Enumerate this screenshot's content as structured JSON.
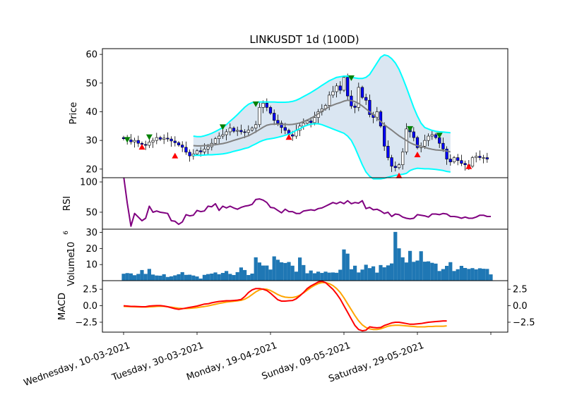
{
  "chart_data": {
    "title": "LINKUSDT 1d (100D)",
    "type": "candlestick",
    "x_ticks": [
      {
        "label": "Wednesday, 10-03-2021",
        "day": 0
      },
      {
        "label": "Tuesday, 30-03-2021",
        "day": 20
      },
      {
        "label": "Monday, 19-04-2021",
        "day": 40
      },
      {
        "label": "Sunday, 09-05-2021",
        "day": 60
      },
      {
        "label": "Saturday, 29-05-2021",
        "day": 80
      },
      {
        "label": "",
        "day": 100
      }
    ],
    "panels": {
      "price": {
        "ylabel": "Price",
        "ylim": [
          17,
          62
        ],
        "yticks": [
          20,
          30,
          40,
          50,
          60
        ],
        "up_color": "#ffffff",
        "down_color": "#0000ff",
        "ma_color": "#808080",
        "band_color": "#00ffff",
        "fill_color": "#dae6f2",
        "buy_marker_color": "#008000",
        "sell_marker_color": "#ff0000",
        "close": [
          30.6,
          30.2,
          29.5,
          30.0,
          29.0,
          28.6,
          28.3,
          29.4,
          30.0,
          31.0,
          30.4,
          30.8,
          30.5,
          29.8,
          29.2,
          28.4,
          27.6,
          25.9,
          24.6,
          25.3,
          26.4,
          26.0,
          27.0,
          27.8,
          29.0,
          30.6,
          31.5,
          32.0,
          33.0,
          34.3,
          33.2,
          33.5,
          33.0,
          32.8,
          33.6,
          34.3,
          35.5,
          41.5,
          43.0,
          41.5,
          39.5,
          37.0,
          36.0,
          34.5,
          33.5,
          32.0,
          31.5,
          33.5,
          35.0,
          36.0,
          36.8,
          36.2,
          38.0,
          40.0,
          41.0,
          42.2,
          45.8,
          47.0,
          49.0,
          47.5,
          52.0,
          45.5,
          42.0,
          41.5,
          48.5,
          45.0,
          44.0,
          39.0,
          38.0,
          40.0,
          35.0,
          28.0,
          24.0,
          21.0,
          20.5,
          21.5,
          26.0,
          34.0,
          33.0,
          31.0,
          27.5,
          28.0,
          30.0,
          31.5,
          32.0,
          31.0,
          29.0,
          27.0,
          23.5,
          22.5,
          24.0,
          23.0,
          22.0,
          21.5,
          21.0,
          24.0,
          24.5,
          24.0,
          24.0,
          23.5
        ],
        "bands": {
          "start_day": 19,
          "mid": [
            28.2,
            28.1,
            28.1,
            28.2,
            28.3,
            28.4,
            28.5,
            28.7,
            28.9,
            29.2,
            29.6,
            30.0,
            30.4,
            30.8,
            31.2,
            31.6,
            32.3,
            33.0,
            33.8,
            34.6,
            35.3,
            35.6,
            35.7,
            35.7,
            35.6,
            35.6,
            35.5,
            35.6,
            35.8,
            36.1,
            36.6,
            37.1,
            37.7,
            38.5,
            39.3,
            40.2,
            41.0,
            41.8,
            42.3,
            42.8,
            43.2,
            43.7,
            44.0,
            43.9,
            43.5,
            42.9,
            42.0,
            41.0,
            40.0,
            39.0,
            37.8,
            36.6,
            35.5,
            34.5,
            33.6,
            32.6,
            31.6,
            30.8,
            30.0,
            29.2,
            28.6,
            28.2,
            28.0,
            27.6,
            27.2,
            26.9,
            26.7,
            26.6,
            26.5,
            26.3,
            26.0
          ],
          "upper": [
            31.5,
            31.3,
            31.3,
            31.6,
            32.0,
            32.5,
            33.1,
            33.8,
            34.5,
            35.5,
            36.7,
            37.8,
            39.0,
            40.3,
            41.6,
            42.6,
            43.2,
            43.3,
            43.4,
            43.4,
            43.4,
            43.4,
            43.4,
            43.3,
            43.3,
            43.3,
            43.4,
            43.6,
            44.0,
            44.6,
            45.3,
            46.0,
            46.7,
            47.5,
            48.3,
            49.2,
            50.0,
            50.8,
            51.4,
            52.0,
            52.2,
            52.4,
            52.4,
            52.0,
            51.8,
            51.6,
            51.6,
            52.0,
            53.0,
            55.0,
            57.0,
            59.0,
            59.8,
            59.5,
            58.5,
            57.0,
            54.8,
            51.8,
            48.5,
            45.0,
            41.5,
            38.5,
            36.0,
            34.5,
            34.0,
            33.5,
            33.2,
            33.0,
            32.9,
            32.8,
            32.7
          ],
          "lower": [
            24.8,
            24.8,
            24.8,
            24.9,
            25.0,
            25.0,
            25.1,
            25.2,
            25.3,
            25.5,
            25.8,
            26.2,
            26.5,
            26.8,
            27.2,
            27.5,
            28.2,
            28.8,
            29.5,
            30.0,
            30.4,
            30.6,
            30.8,
            31.1,
            31.4,
            31.8,
            32.2,
            32.8,
            33.5,
            34.1,
            34.8,
            35.3,
            35.7,
            35.8,
            35.8,
            35.5,
            35.0,
            34.5,
            34.0,
            33.5,
            33.0,
            32.5,
            31.5,
            30.0,
            27.5,
            24.5,
            21.5,
            19.0,
            17.5,
            16.6,
            16.6,
            16.6,
            16.8,
            17.2,
            17.5,
            17.8,
            18.0,
            18.2,
            18.5,
            19.5,
            20.0,
            20.3,
            20.2,
            20.1,
            20.1,
            20.0,
            19.9,
            19.7,
            19.5,
            19.2,
            19.0
          ]
        },
        "buy_markers": [
          [
            1,
            30.2
          ],
          [
            7,
            31.1
          ],
          [
            27,
            34.6
          ],
          [
            36,
            42.6
          ],
          [
            62,
            51.7
          ],
          [
            78,
            34.0
          ],
          [
            86,
            31.7
          ]
        ],
        "sell_markers": [
          [
            5,
            27.8
          ],
          [
            14,
            24.7
          ],
          [
            45,
            31.2
          ],
          [
            75,
            17.8
          ],
          [
            80,
            25.1
          ],
          [
            94,
            21.0
          ]
        ]
      },
      "rsi": {
        "ylabel": "RSI",
        "color": "#800080",
        "ylim": [
          22,
          107
        ],
        "yticks": [
          50,
          100
        ],
        "values": [
          110,
          65,
          27,
          48,
          42,
          36,
          40,
          60,
          50,
          52,
          50,
          49,
          48,
          36,
          35,
          30,
          34,
          46,
          44,
          45,
          53,
          51,
          52,
          60,
          59,
          64,
          53,
          60,
          57,
          60,
          57,
          55,
          58,
          60,
          61,
          63,
          71,
          72,
          70,
          66,
          58,
          57,
          53,
          49,
          55,
          51,
          51,
          48,
          48,
          52,
          53,
          54,
          53,
          56,
          57,
          60,
          63,
          66,
          64,
          67,
          64,
          69,
          64,
          66,
          65,
          69,
          56,
          58,
          54,
          55,
          52,
          48,
          50,
          43,
          47,
          46,
          42,
          40,
          39,
          40,
          46,
          45,
          44,
          42,
          47,
          47,
          46,
          48,
          47,
          43,
          43,
          42,
          40,
          42,
          40,
          40,
          42,
          45,
          45,
          43,
          43
        ]
      },
      "volume": {
        "ylabel": "Volume",
        "exponent_label": "10",
        "exponent_power": "6",
        "color": "#1f77b4",
        "ylim": [
          0,
          32
        ],
        "yticks": [
          10,
          20,
          30
        ],
        "values": [
          4.3,
          4.7,
          4.5,
          3.4,
          4.2,
          6.6,
          4.2,
          7.3,
          3.8,
          3.2,
          3.1,
          4.0,
          2.3,
          2.7,
          3.3,
          4.0,
          5.3,
          3.6,
          3.7,
          3.2,
          2.6,
          1.3,
          3.6,
          4.1,
          4.4,
          5.1,
          4.0,
          4.8,
          6.0,
          4.2,
          3.5,
          5.3,
          8.2,
          6.6,
          3.5,
          4.4,
          14.5,
          11.3,
          9.4,
          9.4,
          6.9,
          15.1,
          13.0,
          11.4,
          11.0,
          11.6,
          9.3,
          5.6,
          14.4,
          9.7,
          4.6,
          6.3,
          4.6,
          5.6,
          4.8,
          5.6,
          5.0,
          5.1,
          4.9,
          6.8,
          19.4,
          16.8,
          7.1,
          9.3,
          5.1,
          6.9,
          9.9,
          7.8,
          8.9,
          5.0,
          9.7,
          8.3,
          9.5,
          10.7,
          30.3,
          20.1,
          14.5,
          11.3,
          18.5,
          11.7,
          12.5,
          18.3,
          11.8,
          12.0,
          11.1,
          10.6,
          6.0,
          7.2,
          9.2,
          11.5,
          6.0,
          7.1,
          9.2,
          7.9,
          7.3,
          7.8,
          7.0,
          7.7,
          7.4,
          7.3,
          3.9
        ]
      },
      "macd": {
        "ylabel": "MACD",
        "macd_color": "#ff0000",
        "signal_color": "#ffa500",
        "ylim": [
          -4.0,
          3.8
        ],
        "yticks": [
          -2.5,
          0.0,
          2.5
        ],
        "macd": [
          0.0,
          -0.05,
          -0.1,
          -0.1,
          -0.12,
          -0.15,
          -0.15,
          -0.05,
          0.0,
          0.02,
          0.02,
          -0.05,
          -0.15,
          -0.3,
          -0.45,
          -0.55,
          -0.45,
          -0.35,
          -0.25,
          -0.15,
          -0.05,
          0.1,
          0.25,
          0.3,
          0.45,
          0.55,
          0.65,
          0.7,
          0.75,
          0.75,
          0.8,
          0.85,
          0.95,
          1.4,
          2.0,
          2.4,
          2.6,
          2.6,
          2.5,
          2.3,
          1.9,
          1.4,
          0.9,
          0.7,
          0.7,
          0.75,
          0.8,
          1.05,
          1.5,
          2.0,
          2.6,
          3.0,
          3.3,
          3.6,
          3.7,
          3.5,
          3.0,
          2.5,
          1.8,
          1.0,
          0.0,
          -1.0,
          -2.0,
          -3.0,
          -3.6,
          -3.8,
          -3.7,
          -3.2,
          -3.3,
          -3.35,
          -3.3,
          -3.0,
          -2.8,
          -2.6,
          -2.5,
          -2.5,
          -2.6,
          -2.7,
          -2.8,
          -2.8,
          -2.75,
          -2.7,
          -2.6,
          -2.5,
          -2.45,
          -2.4,
          -2.35,
          -2.3,
          -2.3
        ],
        "signal": [
          -0.1,
          -0.12,
          -0.14,
          -0.16,
          -0.18,
          -0.2,
          -0.2,
          -0.18,
          -0.15,
          -0.1,
          -0.08,
          -0.1,
          -0.15,
          -0.22,
          -0.3,
          -0.38,
          -0.42,
          -0.42,
          -0.4,
          -0.35,
          -0.28,
          -0.2,
          -0.12,
          -0.02,
          0.1,
          0.22,
          0.35,
          0.45,
          0.55,
          0.62,
          0.68,
          0.74,
          0.82,
          1.0,
          1.3,
          1.7,
          2.1,
          2.4,
          2.55,
          2.5,
          2.3,
          2.0,
          1.7,
          1.45,
          1.3,
          1.25,
          1.25,
          1.35,
          1.6,
          1.95,
          2.35,
          2.75,
          3.1,
          3.35,
          3.5,
          3.5,
          3.35,
          3.05,
          2.6,
          2.0,
          1.2,
          0.3,
          -0.6,
          -1.5,
          -2.3,
          -2.9,
          -3.3,
          -3.5,
          -3.6,
          -3.6,
          -3.5,
          -3.3,
          -3.1,
          -3.0,
          -2.95,
          -2.95,
          -3.0,
          -3.05,
          -3.1,
          -3.15,
          -3.2,
          -3.2,
          -3.2,
          -3.15,
          -3.15,
          -3.1,
          -3.1,
          -3.1,
          -3.05
        ]
      }
    }
  }
}
